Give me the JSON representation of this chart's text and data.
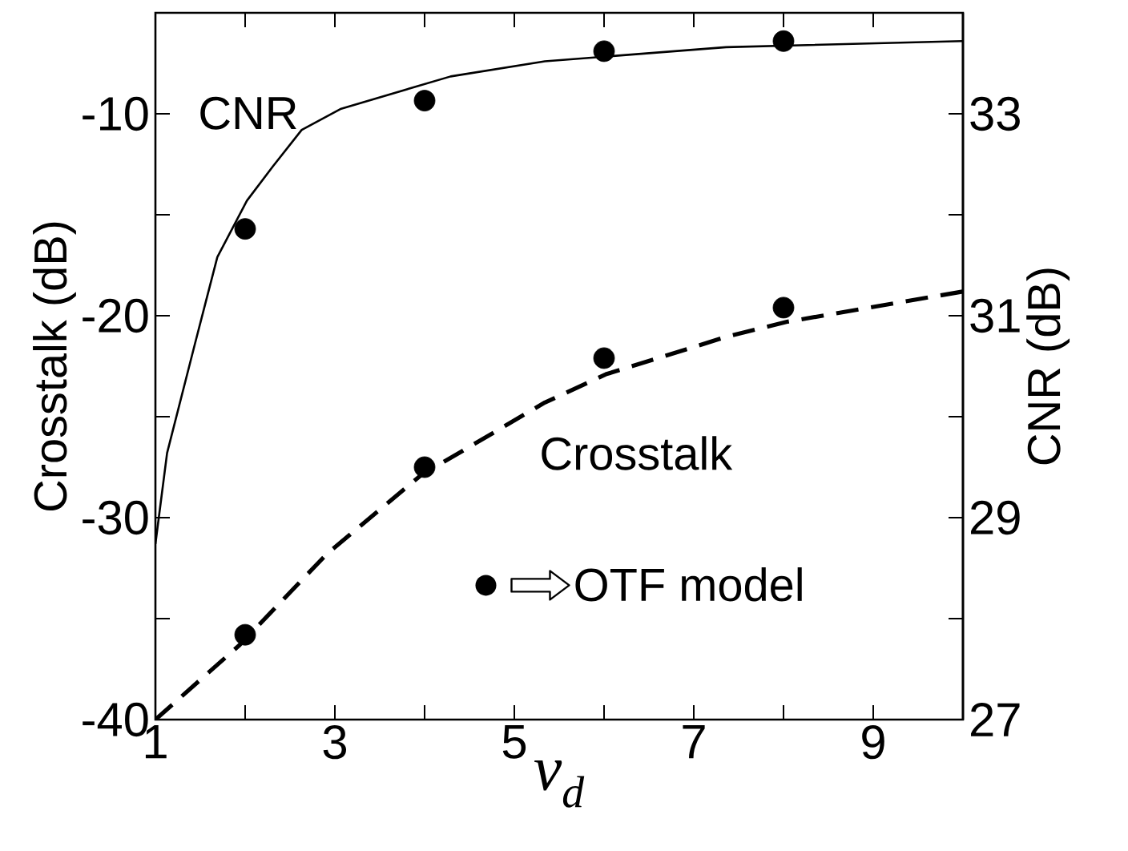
{
  "chart_data": {
    "type": "line",
    "xlabel": "ν$_{d}$",
    "ylabel": "Crosstalk (dB)",
    "y2label": "CNR (dB)",
    "xlim": [
      1,
      10
    ],
    "ylim": [
      -40,
      -5
    ],
    "y2lim": [
      27,
      34
    ],
    "xticks": [
      1,
      {
        "value": 2,
        "label": null
      },
      3,
      {
        "value": 4,
        "label": null
      },
      5,
      {
        "value": 6,
        "label": null
      },
      7,
      {
        "value": 8,
        "label": null
      },
      9,
      {
        "value": 10,
        "label": null
      }
    ],
    "yticks": [
      -40,
      {
        "value": -35,
        "label": null
      },
      -30,
      {
        "value": -25,
        "label": null
      },
      -20,
      {
        "value": -15,
        "label": null
      },
      -10
    ],
    "y2ticks": [
      27,
      {
        "value": 28,
        "label": null
      },
      29,
      {
        "value": 30,
        "label": null
      },
      31,
      {
        "value": 32,
        "label": null
      },
      33
    ],
    "grid": false,
    "legend": "bottom",
    "series": [
      {
        "axis": "y2",
        "color": "#000000",
        "line_style": "solid",
        "marker": "none",
        "x": [
          1,
          1.13,
          1.44,
          1.69,
          2.02,
          2.31,
          2.63,
          3.07,
          4.29,
          5.34,
          7.36,
          10
        ],
        "values": [
          28.74,
          29.64,
          30.72,
          31.58,
          32.14,
          32.48,
          32.84,
          33.05,
          33.37,
          33.52,
          33.66,
          33.72
        ]
      },
      {
        "color": "#000000",
        "line_style": "dashed",
        "marker": "none",
        "x": [
          1,
          1.94,
          2.91,
          3.96,
          5.34,
          6.02,
          7.36,
          8.04,
          10
        ],
        "values": [
          -40,
          -36.3,
          -31.8,
          -27.9,
          -24.3,
          -22.9,
          -21.05,
          -20.3,
          -18.8
        ]
      },
      {
        "type": "scatter",
        "axis": "y2",
        "color": "#000000",
        "marker": "circle",
        "x": [
          2,
          4,
          6,
          8
        ],
        "values": [
          31.86,
          33.13,
          33.62,
          33.72
        ]
      },
      {
        "type": "scatter",
        "name": "OTF model",
        "color": "#000000",
        "marker": "circle",
        "x": [
          2,
          4,
          6,
          8
        ],
        "values": [
          -35.8,
          -27.5,
          -22.1,
          -19.6
        ]
      }
    ],
    "annotations": [
      "CNR",
      "Crosstalk"
    ]
  }
}
